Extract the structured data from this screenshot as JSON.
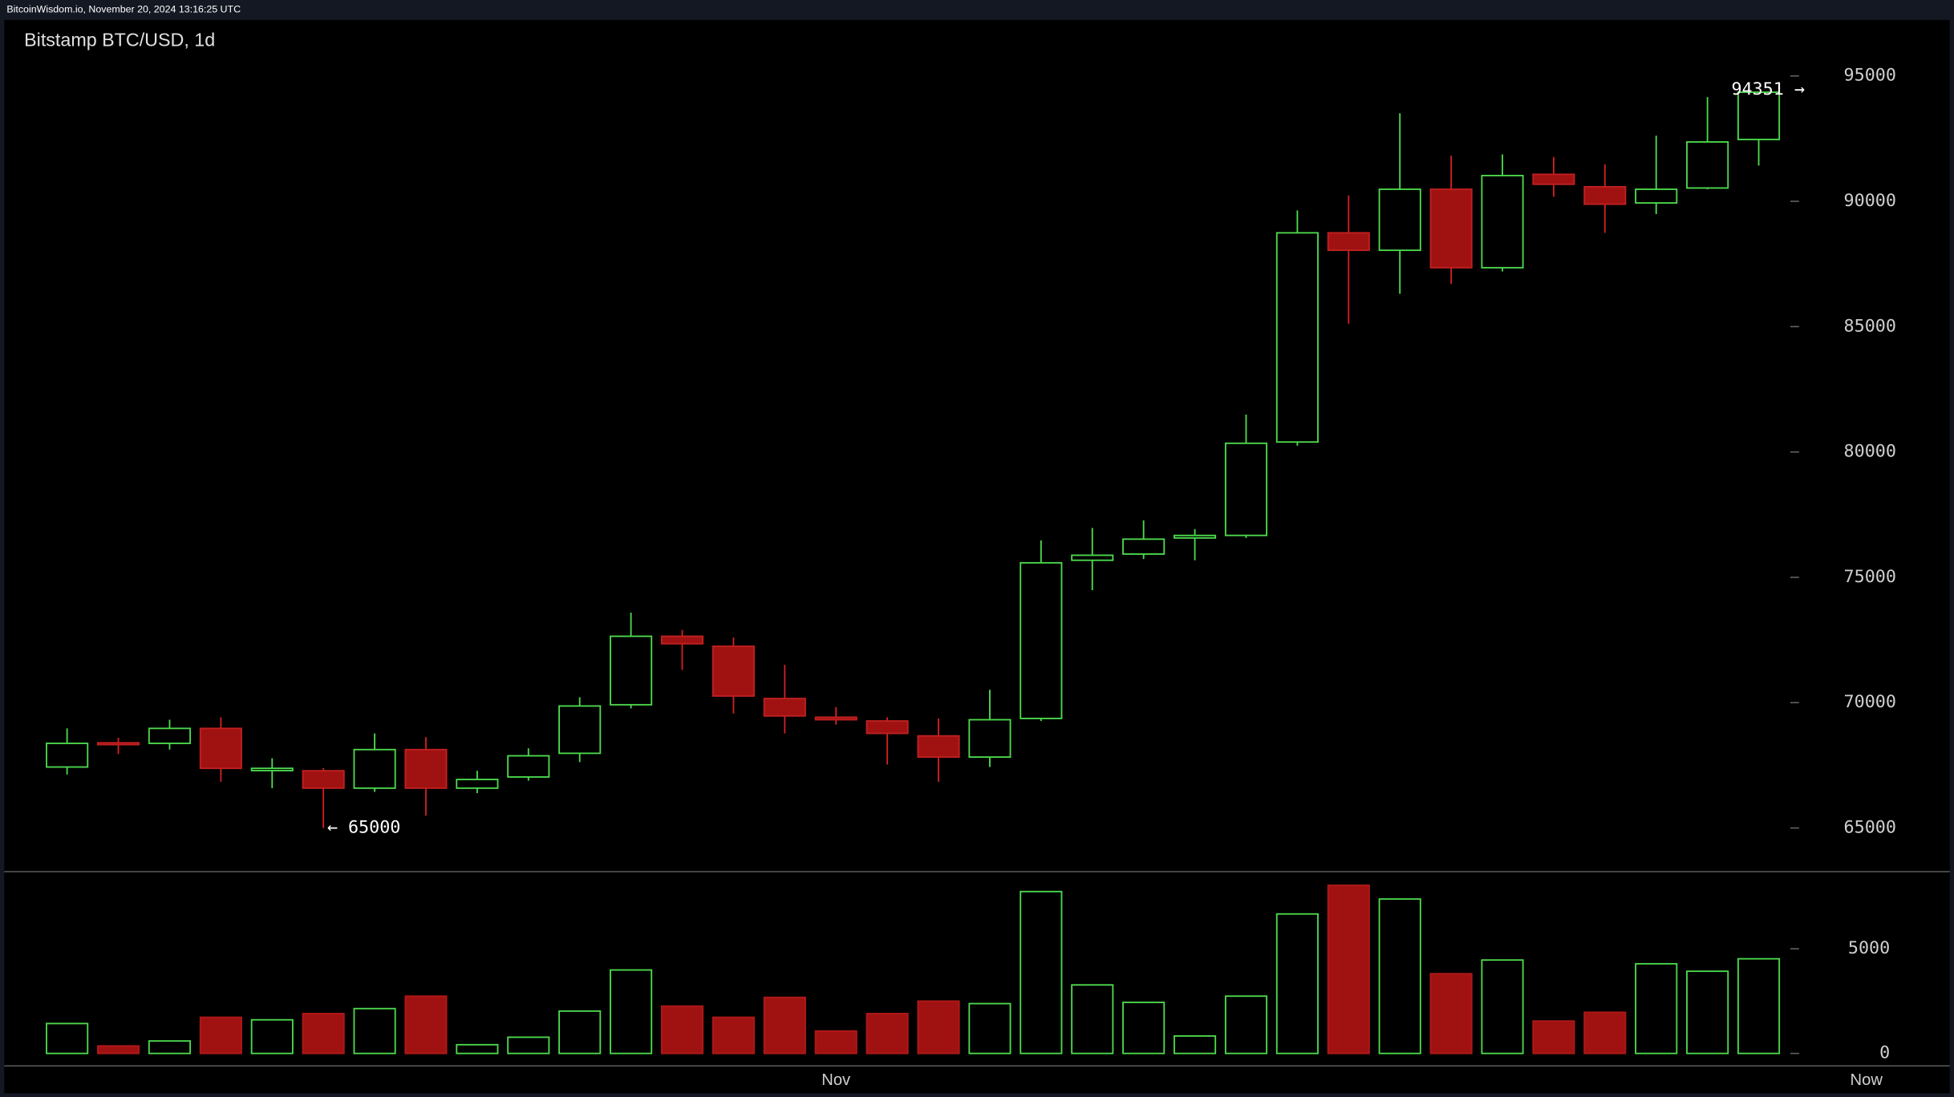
{
  "chart_data": {
    "type": "candlestick",
    "header": "BitcoinWisdom.io, November 20, 2024 13:16:25 UTC",
    "title": "Bitstamp BTC/USD, 1d",
    "up_color": "#4cd84c",
    "down_color": "#a01212",
    "open": [
      67433,
      68400,
      68377,
      68973,
      67290,
      67283,
      66590,
      68128,
      66590,
      67035,
      67980,
      69917,
      72648,
      72250,
      70165,
      69420,
      69270,
      68675,
      67830,
      69370,
      75680,
      75927,
      76570,
      76672,
      80397,
      88742,
      88046,
      90480,
      87351,
      91076,
      90580,
      89934,
      90530,
      92467
    ],
    "high": [
      68973,
      68600,
      69320,
      69420,
      67781,
      67390,
      68774,
      68626,
      67283,
      68178,
      70215,
      73592,
      72900,
      72600,
      71506,
      69820,
      69420,
      69370,
      70513,
      76473,
      76970,
      77268,
      76920,
      81490,
      89636,
      90232,
      93510,
      91821,
      91871,
      91772,
      91473,
      92616,
      94156,
      94351
    ],
    "low": [
      67135,
      67950,
      68130,
      66840,
      66590,
      65000,
      66440,
      65496,
      66390,
      66890,
      67630,
      69770,
      71307,
      69570,
      68774,
      69120,
      67533,
      66840,
      67433,
      69270,
      74486,
      75728,
      75680,
      76570,
      80248,
      85116,
      86308,
      86705,
      87202,
      90182,
      88742,
      89487,
      90480,
      91424
    ],
    "close": [
      68377,
      68350,
      68973,
      67380,
      67380,
      66590,
      68128,
      66590,
      66936,
      67880,
      69867,
      72648,
      72350,
      70265,
      69470,
      69320,
      68774,
      67830,
      69320,
      75579,
      75880,
      76523,
      76670,
      80347,
      88742,
      88046,
      90480,
      87351,
      91026,
      90679,
      89884,
      90480,
      92367,
      94351
    ],
    "volume": [
      1428,
      357,
      595,
      1726,
      1607,
      1904,
      2142,
      2737,
      417,
      774,
      2023,
      3987,
      2261,
      1726,
      2678,
      1071,
      1904,
      2499,
      2380,
      7735,
      3273,
      2440,
      833,
      2737,
      6664,
      8033,
      7378,
      3808,
      4463,
      1547,
      1964,
      4284,
      3927,
      4522
    ],
    "ylim": [
      63260,
      97235
    ],
    "yticks": [
      65000,
      70000,
      75000,
      80000,
      85000,
      90000,
      95000
    ],
    "y2lim": [
      0,
      8628
    ],
    "y2ticks": [
      0,
      5000
    ],
    "xlim": [
      -0.4,
      36.8
    ],
    "xticks": [
      {
        "value": 15,
        "label": "Nov"
      },
      {
        "value": 35.1,
        "label": "Now"
      }
    ],
    "annotations": [
      {
        "text": "← 65000",
        "at": 5
      },
      {
        "text": "94351 →",
        "at": 33
      }
    ]
  }
}
